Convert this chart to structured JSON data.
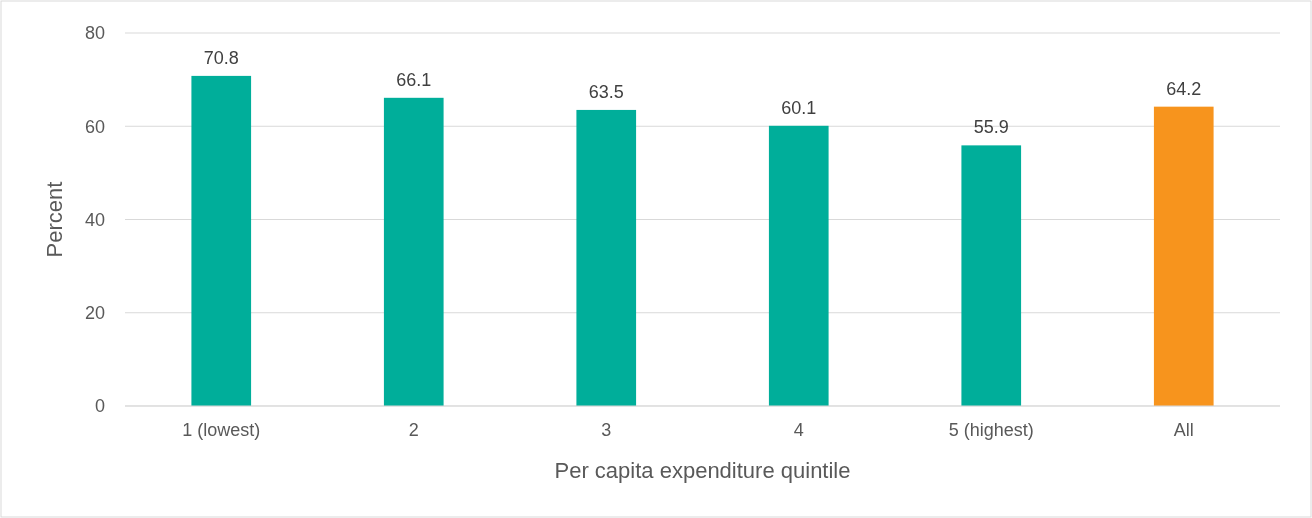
{
  "chart_data": {
    "type": "bar",
    "xlabel": "Per capita expenditure quintile",
    "ylabel": "Percent",
    "categories": [
      "1 (lowest)",
      "2",
      "3",
      "4",
      "5 (highest)",
      "All"
    ],
    "values": [
      70.8,
      66.1,
      63.5,
      60.1,
      55.9,
      64.2
    ],
    "colors": [
      "#00ae9a",
      "#00ae9a",
      "#00ae9a",
      "#00ae9a",
      "#00ae9a",
      "#f7941d"
    ],
    "ylim": [
      0,
      80
    ],
    "yticks": [
      0,
      20,
      40,
      60,
      80
    ],
    "grid": "y",
    "data_labels": true
  }
}
